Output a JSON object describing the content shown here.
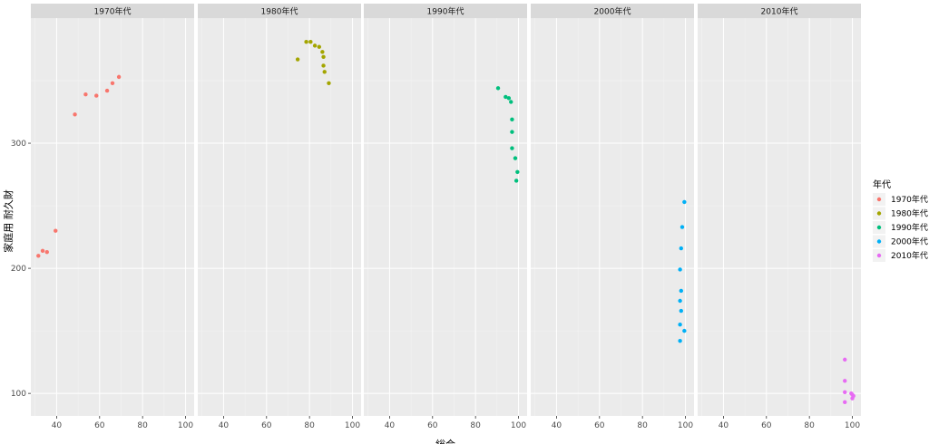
{
  "chart_data": {
    "type": "scatter",
    "xlabel": "総合",
    "ylabel": "家庭用 耐久財",
    "xlim": [
      28,
      104
    ],
    "ylim": [
      82,
      400
    ],
    "x_ticks": [
      40,
      60,
      80,
      100
    ],
    "y_ticks": [
      100,
      200,
      300
    ],
    "x_tick_labels": [
      "40",
      "60",
      "80",
      "100"
    ],
    "y_tick_labels": [
      "100",
      "200",
      "300"
    ],
    "grid": true,
    "legend_title": "年代",
    "legend_position": "right",
    "panels": [
      {
        "name": "1970年代",
        "color": "#F8766D",
        "points": [
          [
            31.5,
            210
          ],
          [
            33.5,
            214
          ],
          [
            35.5,
            213
          ],
          [
            39.5,
            230
          ],
          [
            48.5,
            323
          ],
          [
            53.5,
            339
          ],
          [
            58.5,
            338
          ],
          [
            63.5,
            342
          ],
          [
            66,
            348
          ],
          [
            69,
            353
          ]
        ]
      },
      {
        "name": "1980年代",
        "color": "#A3A500",
        "points": [
          [
            74.5,
            367
          ],
          [
            78.5,
            381
          ],
          [
            80.5,
            381
          ],
          [
            82.5,
            378
          ],
          [
            84.5,
            377
          ],
          [
            86,
            373
          ],
          [
            86.5,
            369
          ],
          [
            86.5,
            362
          ],
          [
            87,
            357
          ],
          [
            89,
            348
          ]
        ]
      },
      {
        "name": "1990年代",
        "color": "#00BF7D",
        "points": [
          [
            90.5,
            344
          ],
          [
            94,
            337
          ],
          [
            95.5,
            336
          ],
          [
            96.5,
            333
          ],
          [
            97,
            319
          ],
          [
            97,
            309
          ],
          [
            97,
            296
          ],
          [
            98.5,
            288
          ],
          [
            99.5,
            277
          ],
          [
            99,
            270
          ]
        ]
      },
      {
        "name": "2000年代",
        "color": "#00B0F6",
        "points": [
          [
            99.5,
            253
          ],
          [
            98.5,
            233
          ],
          [
            98,
            216
          ],
          [
            97.5,
            199
          ],
          [
            98,
            182
          ],
          [
            97.5,
            174
          ],
          [
            98,
            166
          ],
          [
            97.5,
            155
          ],
          [
            99.5,
            150
          ],
          [
            97.5,
            142
          ]
        ]
      },
      {
        "name": "2010年代",
        "color": "#E76BF3",
        "points": [
          [
            96.5,
            127
          ],
          [
            96.5,
            110
          ],
          [
            96.5,
            101
          ],
          [
            99.5,
            100
          ],
          [
            100,
            99
          ],
          [
            100.5,
            98
          ],
          [
            100,
            96
          ],
          [
            96.5,
            93
          ]
        ]
      }
    ]
  }
}
